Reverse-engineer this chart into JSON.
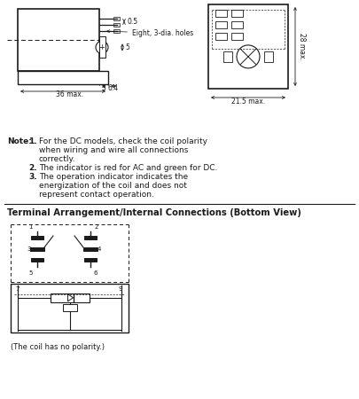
{
  "bg_color": "#ffffff",
  "line_color": "#1a1a1a",
  "fig_width": 4.05,
  "fig_height": 4.5,
  "dpi": 100,
  "note_bold": "Note:",
  "note_items": [
    [
      "1.",
      "For the DC models, check the coil polarity"
    ],
    [
      "",
      "when wiring and wire all connections"
    ],
    [
      "",
      "correctly."
    ],
    [
      "2.",
      "The indicator is red for AC and green for DC."
    ],
    [
      "3.",
      "The operation indicator indicates the"
    ],
    [
      "",
      "energization of the coil and does not"
    ],
    [
      "",
      "represent contact operation."
    ]
  ],
  "terminal_title": "Terminal Arrangement/Internal Connections (Bottom View)",
  "coil_note": "(The coil has no polarity.)"
}
